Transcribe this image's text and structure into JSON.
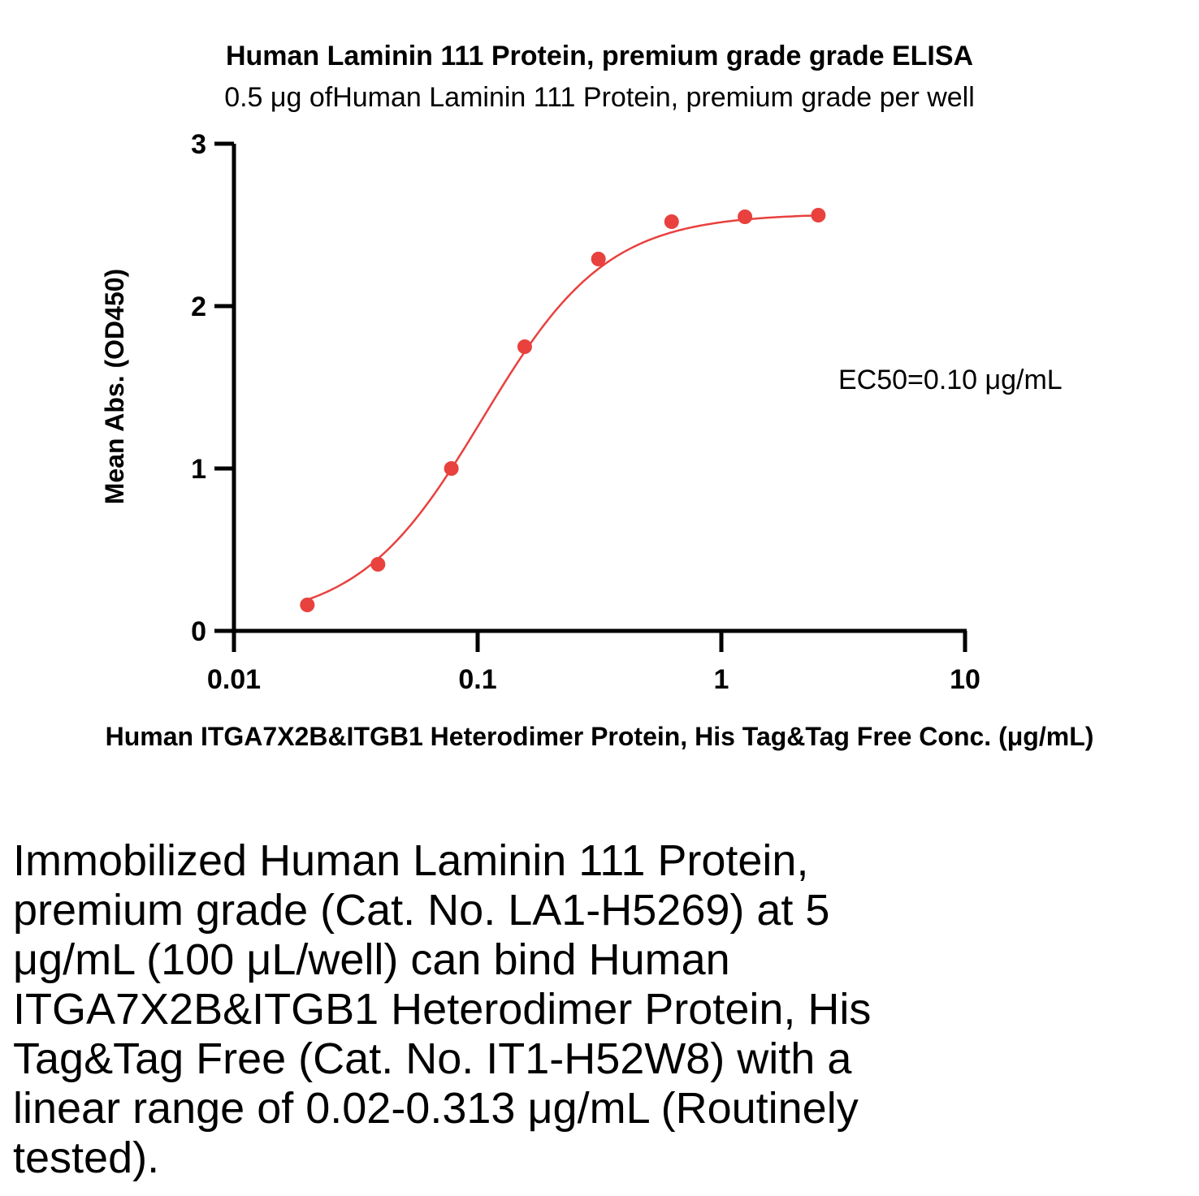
{
  "chart_data": {
    "type": "scatter",
    "title": "Human Laminin 111 Protein, premium grade grade ELISA",
    "subtitle": "0.5 μg ofHuman Laminin 111 Protein, premium grade per well",
    "xlabel": "Human ITGA7X2B&ITGB1 Heterodimer Protein, His Tag&Tag Free Conc. (μg/mL)",
    "ylabel": "Mean Abs. (OD450)",
    "x_scale": "log",
    "xlim": [
      0.01,
      10
    ],
    "ylim": [
      0,
      3
    ],
    "x_ticks": [
      "0.01",
      "0.1",
      "1",
      "10"
    ],
    "y_ticks": [
      "0",
      "1",
      "2",
      "3"
    ],
    "grid": false,
    "series": [
      {
        "x": [
          0.02,
          0.039,
          0.078,
          0.156,
          0.313,
          0.625,
          1.25,
          2.5
        ],
        "y": [
          0.16,
          0.41,
          1.0,
          1.75,
          2.29,
          2.52,
          2.55,
          2.56
        ],
        "color": "#e8413e",
        "fit": "4PL sigmoidal curve"
      }
    ],
    "annotation": "EC50=0.10 μg/mL"
  },
  "caption": "Immobilized Human Laminin 111 Protein, premium grade (Cat. No. LA1-H5269) at 5 μg/mL (100 μL/well) can bind Human ITGA7X2B&ITGB1 Heterodimer Protein, His Tag&Tag Free (Cat. No. IT1-H52W8) with a linear range of 0.02-0.313 μg/mL (Routinely tested)."
}
